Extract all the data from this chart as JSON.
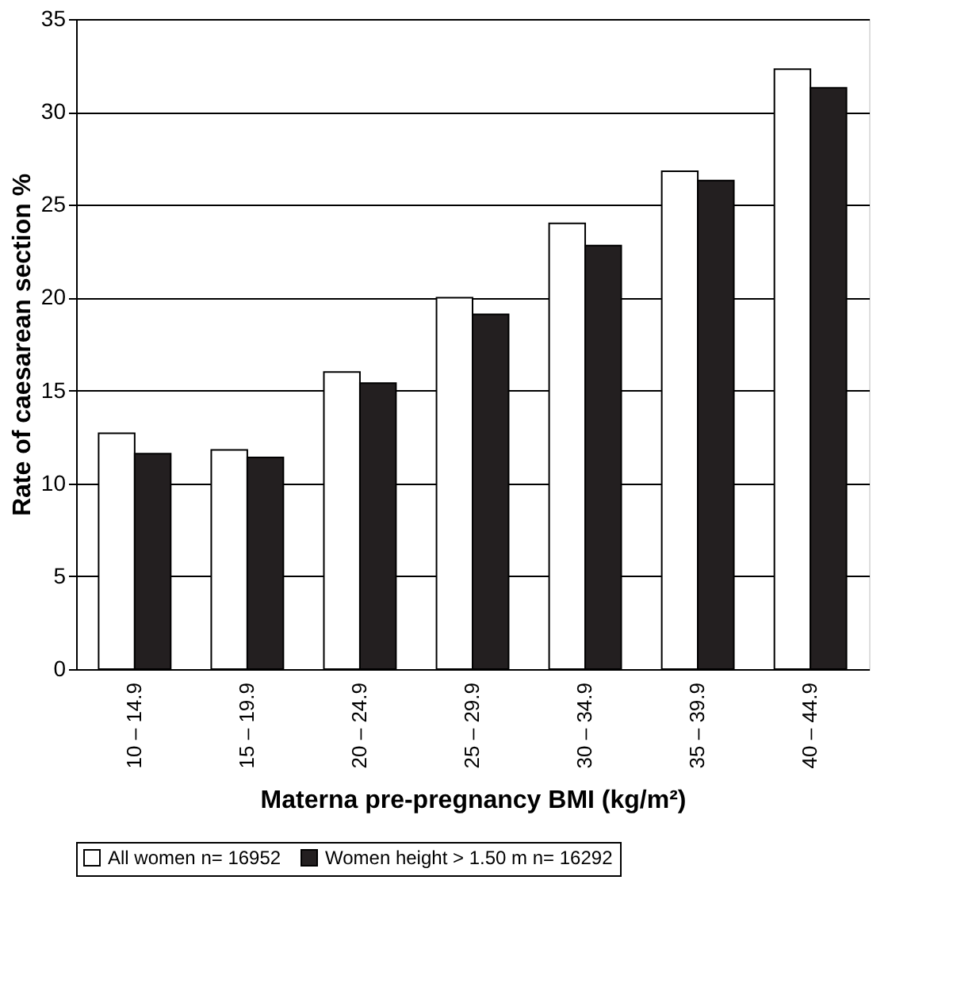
{
  "chart_data": {
    "type": "bar",
    "xlabel": "Materna pre-pregnancy BMI (kg/m²)",
    "ylabel": "Rate of caesarean section %",
    "categories": [
      "10 – 14.9",
      "15 – 19.9",
      "20 – 24.9",
      "25 – 29.9",
      "30 – 34.9",
      "35 – 39.9",
      "40 – 44.9"
    ],
    "series": [
      {
        "name": "All women n= 16952",
        "color": "#ffffff",
        "values": [
          12.7,
          11.8,
          16.0,
          20.0,
          24.0,
          26.8,
          32.3
        ]
      },
      {
        "name": "Women height > 1.50 m n= 16292",
        "color": "#231f20",
        "values": [
          11.6,
          11.4,
          15.4,
          19.1,
          22.8,
          26.3,
          31.3
        ]
      }
    ],
    "ylim": [
      0,
      35
    ],
    "yticks": [
      0,
      5,
      10,
      15,
      20,
      25,
      30,
      35
    ],
    "grid": "y",
    "legend": "bottom"
  }
}
